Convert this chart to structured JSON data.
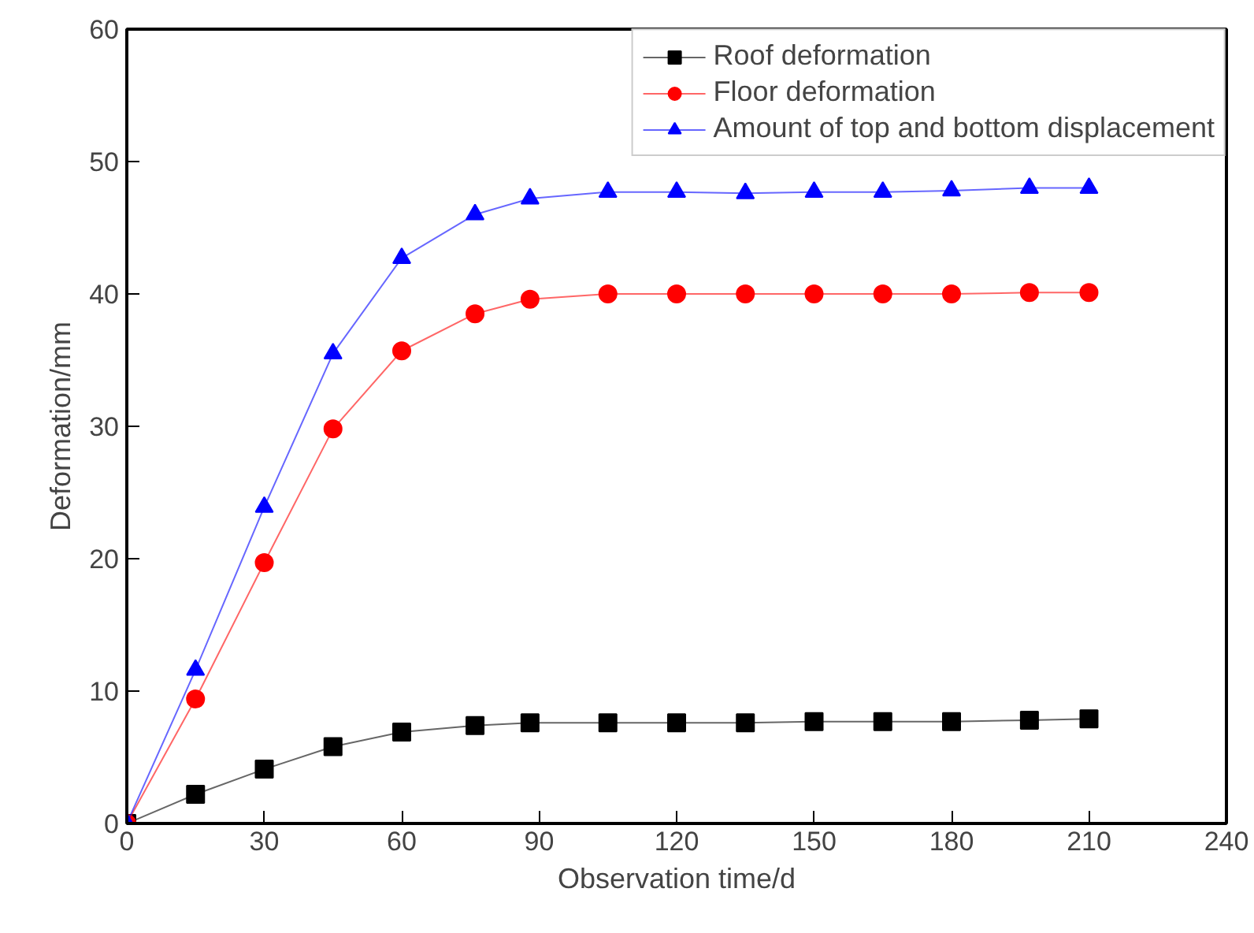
{
  "chart_data": {
    "type": "line",
    "xlabel": "Observation time/d",
    "ylabel": "Deformation/mm",
    "x": [
      0,
      15,
      30,
      45,
      60,
      76,
      88,
      105,
      120,
      135,
      150,
      165,
      180,
      197,
      210
    ],
    "series": [
      {
        "name": "Roof deformation",
        "color": "#000000",
        "marker": "square",
        "values": [
          0,
          2.2,
          4.1,
          5.8,
          6.9,
          7.4,
          7.6,
          7.6,
          7.6,
          7.6,
          7.7,
          7.7,
          7.7,
          7.8,
          7.9
        ]
      },
      {
        "name": "Floor deformation",
        "color": "#ff0000",
        "marker": "circle",
        "values": [
          0,
          9.4,
          19.7,
          29.8,
          35.7,
          38.5,
          39.6,
          40.0,
          40.0,
          40.0,
          40.0,
          40.0,
          40.0,
          40.1,
          40.1
        ]
      },
      {
        "name": "Amount of top and bottom displacement",
        "color": "#0000ff",
        "marker": "triangle",
        "values": [
          0,
          11.6,
          23.9,
          35.5,
          42.7,
          46.0,
          47.2,
          47.7,
          47.7,
          47.6,
          47.7,
          47.7,
          47.8,
          48.0,
          48.0
        ]
      }
    ],
    "xlim": [
      0,
      240
    ],
    "xticks": [
      0,
      30,
      60,
      90,
      120,
      150,
      180,
      210,
      240
    ],
    "ylim": [
      0,
      60
    ],
    "yticks": [
      0,
      10,
      20,
      30,
      40,
      50,
      60
    ],
    "grid": false,
    "legend": "top right",
    "line_style": "solid"
  }
}
